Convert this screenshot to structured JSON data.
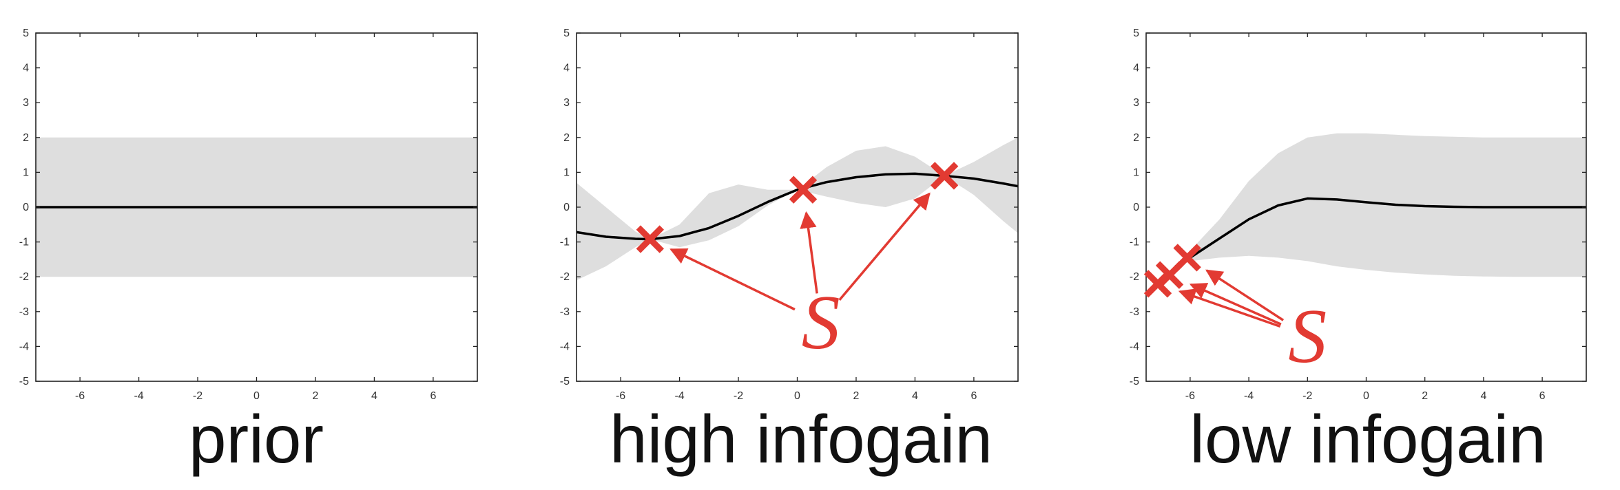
{
  "chart_data": [
    {
      "type": "line",
      "title": "prior",
      "xlim": [
        -7.5,
        7.5
      ],
      "ylim": [
        -5,
        5
      ],
      "xticks": [
        -6,
        -4,
        -2,
        0,
        2,
        4,
        6
      ],
      "yticks": [
        -5,
        -4,
        -3,
        -2,
        -1,
        0,
        1,
        2,
        3,
        4,
        5
      ],
      "mean": {
        "x": [
          -7.5,
          -6,
          -4,
          -2,
          0,
          2,
          4,
          6,
          7.5
        ],
        "y": [
          0,
          0,
          0,
          0,
          0,
          0,
          0,
          0,
          0
        ]
      },
      "band": {
        "x": [
          -7.5,
          -6,
          -4,
          -2,
          0,
          2,
          4,
          6,
          7.5
        ],
        "lower": [
          -2,
          -2,
          -2,
          -2,
          -2,
          -2,
          -2,
          -2,
          -2
        ],
        "upper": [
          2,
          2,
          2,
          2,
          2,
          2,
          2,
          2,
          2
        ]
      },
      "observations": [],
      "label": "",
      "label_pos": null,
      "colors": {
        "band": "#dedede",
        "mean": "#000000",
        "marker": "#e23a32"
      }
    },
    {
      "type": "line",
      "title": "high infogain",
      "xlim": [
        -7.5,
        7.5
      ],
      "ylim": [
        -5,
        5
      ],
      "xticks": [
        -6,
        -4,
        -2,
        0,
        2,
        4,
        6
      ],
      "yticks": [
        -5,
        -4,
        -3,
        -2,
        -1,
        0,
        1,
        2,
        3,
        4,
        5
      ],
      "mean": {
        "x": [
          -7.5,
          -6.5,
          -5.5,
          -5,
          -4,
          -3,
          -2,
          -1,
          0,
          1,
          2,
          3,
          4,
          5,
          6,
          7,
          7.5
        ],
        "y": [
          -0.72,
          -0.85,
          -0.91,
          -0.92,
          -0.83,
          -0.6,
          -0.25,
          0.15,
          0.5,
          0.72,
          0.86,
          0.94,
          0.96,
          0.9,
          0.82,
          0.68,
          0.6
        ]
      },
      "band": {
        "x": [
          -7.5,
          -6.5,
          -5.5,
          -5,
          -4,
          -3,
          -2,
          -1,
          0,
          1,
          2,
          3,
          4,
          5,
          6,
          7,
          7.5
        ],
        "lower": [
          -2.1,
          -1.7,
          -1.15,
          -0.92,
          -1.15,
          -0.95,
          -0.55,
          0.05,
          0.5,
          0.3,
          0.12,
          0.0,
          0.25,
          0.9,
          0.35,
          -0.4,
          -0.75
        ],
        "upper": [
          0.7,
          0.0,
          -0.7,
          -0.92,
          -0.5,
          0.4,
          0.65,
          0.5,
          0.5,
          1.15,
          1.62,
          1.75,
          1.45,
          0.9,
          1.3,
          1.78,
          2.0
        ]
      },
      "observations": [
        {
          "x": -5,
          "y": -0.92
        },
        {
          "x": 0.2,
          "y": 0.5
        },
        {
          "x": 5,
          "y": 0.9
        }
      ],
      "label": "S",
      "label_pos": {
        "x": 0.8,
        "y": -3.3
      },
      "colors": {
        "band": "#dedede",
        "mean": "#000000",
        "marker": "#e23a32"
      }
    },
    {
      "type": "line",
      "title": "low infogain",
      "xlim": [
        -7.5,
        7.5
      ],
      "ylim": [
        -5,
        5
      ],
      "xticks": [
        -6,
        -4,
        -2,
        0,
        2,
        4,
        6
      ],
      "yticks": [
        -5,
        -4,
        -3,
        -2,
        -1,
        0,
        1,
        2,
        3,
        4,
        5
      ],
      "mean": {
        "x": [
          -6.5,
          -6,
          -5,
          -4,
          -3,
          -2,
          -1,
          0,
          1,
          2,
          3,
          4,
          5,
          6,
          7,
          7.5
        ],
        "y": [
          -1.7,
          -1.45,
          -0.9,
          -0.35,
          0.05,
          0.25,
          0.22,
          0.14,
          0.07,
          0.03,
          0.01,
          0.0,
          0.0,
          0.0,
          0.0,
          0.0
        ]
      },
      "band": {
        "x": [
          -6.5,
          -6,
          -5,
          -4,
          -3,
          -2,
          -1,
          0,
          1,
          2,
          3,
          4,
          5,
          6,
          7,
          7.5
        ],
        "lower": [
          -1.7,
          -1.55,
          -1.45,
          -1.4,
          -1.45,
          -1.55,
          -1.7,
          -1.8,
          -1.88,
          -1.93,
          -1.97,
          -1.99,
          -2.0,
          -2.0,
          -2.0,
          -2.0
        ],
        "upper": [
          -1.7,
          -1.25,
          -0.35,
          0.75,
          1.55,
          2.0,
          2.12,
          2.12,
          2.08,
          2.04,
          2.02,
          2.0,
          2.0,
          2.0,
          2.0,
          2.0
        ]
      },
      "observations": [
        {
          "x": -7.1,
          "y": -2.2
        },
        {
          "x": -6.7,
          "y": -1.95
        },
        {
          "x": -6.1,
          "y": -1.45
        }
      ],
      "label": "S",
      "label_pos": {
        "x": -2.0,
        "y": -3.7
      },
      "colors": {
        "band": "#dedede",
        "mean": "#000000",
        "marker": "#e23a32"
      }
    }
  ]
}
